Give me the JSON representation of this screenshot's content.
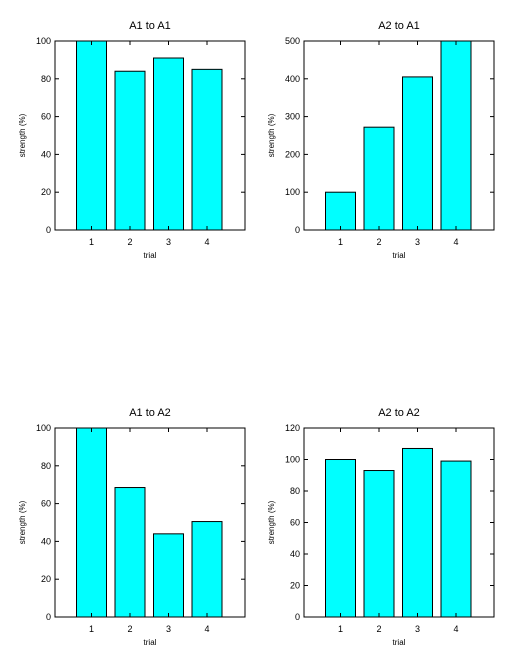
{
  "colors": {
    "bar_fill": "#00ffff",
    "bar_stroke": "#000000",
    "axis": "#000000",
    "background": "#ffffff"
  },
  "chart_data": [
    {
      "type": "bar",
      "title": "A1 to A1",
      "xlabel": "trial",
      "ylabel": "strength (%)",
      "categories": [
        "1",
        "2",
        "3",
        "4"
      ],
      "values": [
        100,
        84,
        91,
        85
      ],
      "ylim": [
        0,
        100
      ],
      "yticks": [
        "0",
        "20",
        "40",
        "60",
        "80",
        "100"
      ],
      "grid": false
    },
    {
      "type": "bar",
      "title": "A2 to A1",
      "xlabel": "trial",
      "ylabel": "strength (%)",
      "categories": [
        "1",
        "2",
        "3",
        "4"
      ],
      "values": [
        100,
        272,
        405,
        500
      ],
      "ylim": [
        0,
        500
      ],
      "yticks": [
        "0",
        "100",
        "200",
        "300",
        "400",
        "500"
      ],
      "grid": false
    },
    {
      "type": "bar",
      "title": "A1 to A2",
      "xlabel": "trial",
      "ylabel": "strength (%)",
      "categories": [
        "1",
        "2",
        "3",
        "4"
      ],
      "values": [
        100,
        68.5,
        44,
        50.5
      ],
      "ylim": [
        0,
        100
      ],
      "yticks": [
        "0",
        "20",
        "40",
        "60",
        "80",
        "100"
      ],
      "grid": false
    },
    {
      "type": "bar",
      "title": "A2 to A2",
      "xlabel": "trial",
      "ylabel": "strength (%)",
      "categories": [
        "1",
        "2",
        "3",
        "4"
      ],
      "values": [
        100,
        93,
        107,
        99
      ],
      "ylim": [
        0,
        120
      ],
      "yticks": [
        "0",
        "20",
        "40",
        "60",
        "80",
        "100",
        "120"
      ],
      "grid": false
    }
  ]
}
